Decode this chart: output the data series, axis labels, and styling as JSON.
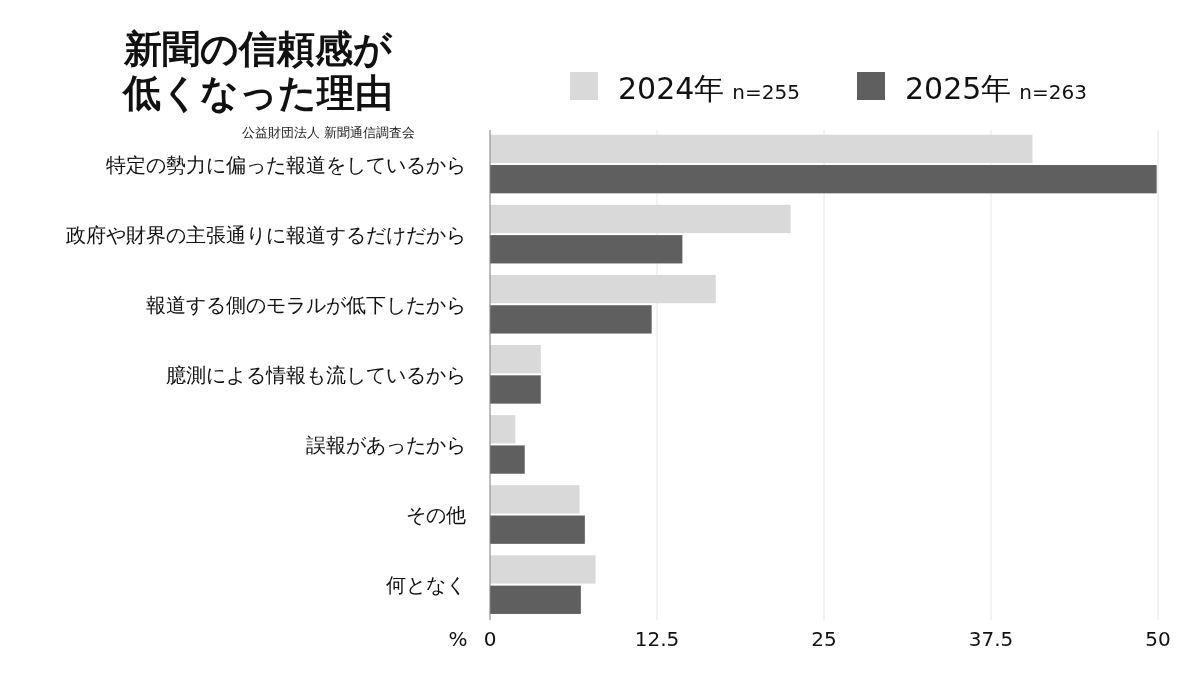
{
  "chart_data": {
    "type": "bar",
    "orientation": "horizontal",
    "title": "新聞の信頼感が低くなった理由",
    "annotations": [
      "公益財団法人 新聞通信調査会"
    ],
    "xlabel": "%",
    "categories": [
      "特定の勢力に偏った報道をしているから",
      "政府や財界の主張通りに報道するだけだから",
      "報道する側のモラルが低下したから",
      "臆測による情報も流しているから",
      "誤報があったから",
      "その他",
      "何となく"
    ],
    "series": [
      {
        "name": "2024年 n=255",
        "color": "#d9d9d9",
        "values": [
          40.6,
          22.5,
          16.9,
          3.8,
          1.9,
          6.7,
          7.9
        ]
      },
      {
        "name": "2025年 n=263",
        "color": "#5f5f5f",
        "values": [
          49.9,
          14.4,
          12.1,
          3.8,
          2.6,
          7.1,
          6.8
        ]
      }
    ],
    "xlim": [
      0,
      50
    ],
    "xticks": [
      0,
      12.5,
      25,
      37.5,
      50
    ],
    "grid": "x",
    "legend": "top"
  }
}
